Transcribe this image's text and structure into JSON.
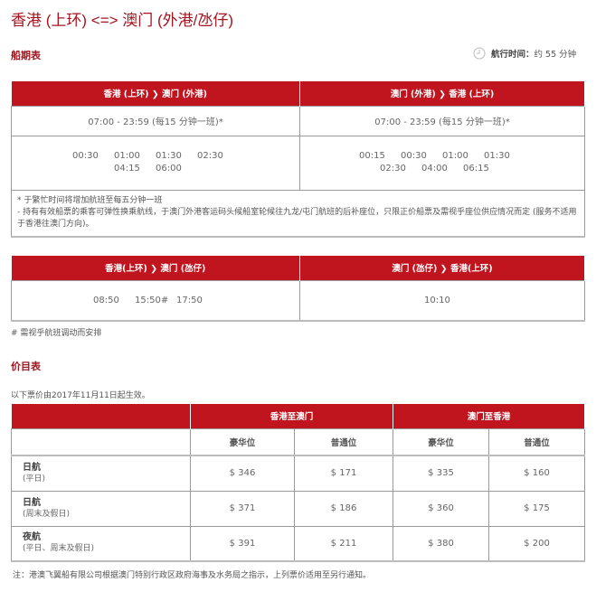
{
  "title": "香港 (上环) <=> 澳门 (外港/氹仔)",
  "schedule": {
    "heading": "船期表",
    "duration_label": "航行时间：",
    "duration_value": "约 55 分钟",
    "clock_icon": "clock-icon",
    "table1": {
      "headers": [
        "香港 (上环) ❯ 澳门 (外港)",
        "澳门 (外港) ❯ 香港 (上环)"
      ],
      "regular": [
        "07:00 - 23:59 (每15 分钟一班)*",
        "07:00 - 23:59 (每15 分钟一班)*"
      ],
      "night": [
        [
          "00:30",
          "01:00",
          "01:30",
          "02:30",
          "04:15",
          "06:00"
        ],
        [
          "00:15",
          "00:30",
          "01:00",
          "01:30",
          "02:30",
          "04:00",
          "06:15"
        ]
      ],
      "notes": [
        "* 于繁忙时间将增加航班至每五分钟一班",
        "- 持有有效船票的乘客可弹性换乘航线，于澳门外港客运码头候船室轮候往九龙/屯门航班的后补座位，只限正价船票及需视乎座位供应情况而定 (服务不适用于香港往澳门方向)。"
      ]
    },
    "table2": {
      "headers": [
        "香港(上环) ❯ 澳门 (氹仔)",
        "澳门 (氹仔) ❯ 香港(上环)"
      ],
      "times": [
        [
          "08:50",
          "15:50#",
          "17:50"
        ],
        [
          "10:10"
        ]
      ]
    },
    "footnote": "# 需视乎航班调动而安排"
  },
  "fares": {
    "heading": "价目表",
    "effective": "以下票价由2017年11月11日起生效。",
    "groups": [
      "香港至澳门",
      "澳门至香港"
    ],
    "classes": [
      "豪华位",
      "普通位",
      "豪华位",
      "普通位"
    ],
    "rows": [
      {
        "name": "日航",
        "sub": "(平日)",
        "prices": [
          "$ 346",
          "$ 171",
          "$ 335",
          "$ 160"
        ]
      },
      {
        "name": "日航",
        "sub": "(周末及假日)",
        "prices": [
          "$ 371",
          "$ 186",
          "$ 360",
          "$ 175"
        ]
      },
      {
        "name": "夜航",
        "sub": "(平日、周末及假日)",
        "prices": [
          "$ 391",
          "$ 211",
          "$ 380",
          "$ 200"
        ]
      }
    ],
    "note": "注：港澳飞翼船有限公司根据澳门特别行政区政府海事及水务局之指示，上列票价适用至另行通知。"
  }
}
